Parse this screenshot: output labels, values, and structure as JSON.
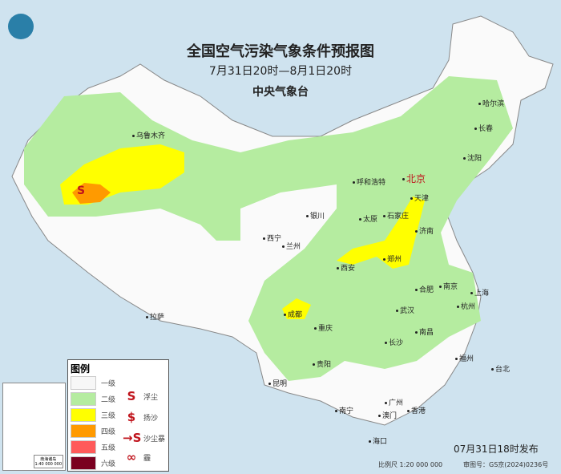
{
  "header": {
    "title": "全国空气污染气象条件预报图",
    "period": "7月31日20时—8月1日20时",
    "issuer": "中央气象台"
  },
  "logo": {
    "name": "cma-logo-icon",
    "color": "#2a7fa8"
  },
  "cities": [
    {
      "name": "乌鲁木齐",
      "capital": false
    },
    {
      "name": "哈尔滨"
    },
    {
      "name": "长春"
    },
    {
      "name": "沈阳"
    },
    {
      "name": "呼和浩特"
    },
    {
      "name": "北京",
      "capital": true
    },
    {
      "name": "天津"
    },
    {
      "name": "石家庄"
    },
    {
      "name": "太原"
    },
    {
      "name": "银川"
    },
    {
      "name": "济南"
    },
    {
      "name": "西宁"
    },
    {
      "name": "兰州"
    },
    {
      "name": "郑州"
    },
    {
      "name": "西安"
    },
    {
      "name": "合肥"
    },
    {
      "name": "南京"
    },
    {
      "name": "上海"
    },
    {
      "name": "武汉"
    },
    {
      "name": "杭州"
    },
    {
      "name": "拉萨"
    },
    {
      "name": "成都"
    },
    {
      "name": "重庆"
    },
    {
      "name": "长沙"
    },
    {
      "name": "南昌"
    },
    {
      "name": "福州"
    },
    {
      "name": "贵阳"
    },
    {
      "name": "台北"
    },
    {
      "name": "昆明"
    },
    {
      "name": "广州"
    },
    {
      "name": "香港"
    },
    {
      "name": "澳门"
    },
    {
      "name": "南宁"
    },
    {
      "name": "海口"
    }
  ],
  "legend": {
    "title": "图例",
    "levels": [
      {
        "label": "一级",
        "color": "#f7f7f7"
      },
      {
        "label": "二级",
        "color": "#b5eca0"
      },
      {
        "label": "三级",
        "color": "#ffff00"
      },
      {
        "label": "四级",
        "color": "#ff9a00"
      },
      {
        "label": "五级",
        "color": "#ff5a5a"
      },
      {
        "label": "六级",
        "color": "#7a0020"
      }
    ],
    "symbols": [
      {
        "label": "浮尘",
        "icon": "floating-dust-icon"
      },
      {
        "label": "扬沙",
        "icon": "blowing-sand-icon"
      },
      {
        "label": "沙尘暴",
        "icon": "sandstorm-icon"
      },
      {
        "label": "霾",
        "icon": "haze-icon"
      }
    ]
  },
  "inset": {
    "label": "南海诸岛",
    "scale": "1:40 000 000"
  },
  "footer": {
    "issued": "07月31日18时发布",
    "scale": "比例尺 1:20 000 000",
    "approval": "审图号：GS京(2024)0236号"
  }
}
